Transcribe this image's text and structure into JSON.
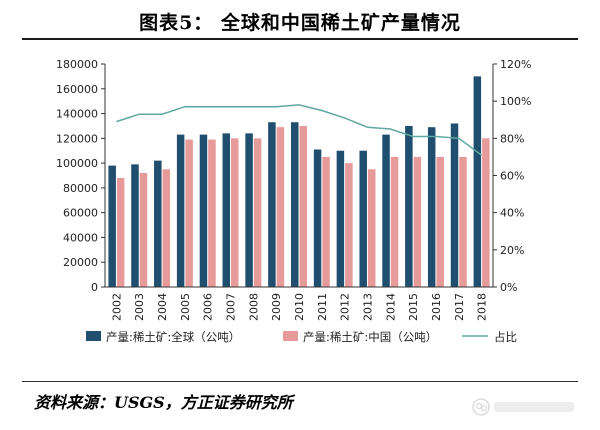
{
  "title": "图表5：  全球和中国稀土矿产量情况",
  "source": "资料来源：USGS，方正证券研究所",
  "colors": {
    "global": "#1f4e6e",
    "china": "#e79a9a",
    "ratio": "#5fa8a2",
    "axis": "#333333"
  },
  "chart_data": {
    "type": "bar",
    "categories": [
      "2002",
      "2003",
      "2004",
      "2005",
      "2006",
      "2007",
      "2008",
      "2009",
      "2010",
      "2011",
      "2012",
      "2013",
      "2014",
      "2015",
      "2016",
      "2017",
      "2018"
    ],
    "series": [
      {
        "name": "产量:稀土矿:全球（公吨）",
        "type": "bar",
        "axis": "left",
        "values": [
          98000,
          99000,
          102000,
          123000,
          123000,
          124000,
          124000,
          133000,
          133000,
          111000,
          110000,
          110000,
          123000,
          130000,
          129000,
          132000,
          170000
        ]
      },
      {
        "name": "产量:稀土矿:中国（公吨）",
        "type": "bar",
        "axis": "left",
        "values": [
          88000,
          92000,
          95000,
          119000,
          119000,
          120000,
          120000,
          129000,
          130000,
          105000,
          100000,
          95000,
          105000,
          105000,
          105000,
          105000,
          120000
        ]
      },
      {
        "name": "占比",
        "type": "line",
        "axis": "right",
        "values": [
          0.89,
          0.93,
          0.93,
          0.97,
          0.97,
          0.97,
          0.97,
          0.97,
          0.98,
          0.95,
          0.91,
          0.86,
          0.85,
          0.81,
          0.81,
          0.8,
          0.71
        ]
      }
    ],
    "ylim": [
      0,
      180000
    ],
    "y_ticks": [
      "0",
      "20000",
      "40000",
      "60000",
      "80000",
      "100000",
      "120000",
      "140000",
      "160000",
      "180000"
    ],
    "y2lim": [
      0,
      1.2
    ],
    "y2_ticks": [
      "0%",
      "20%",
      "40%",
      "60%",
      "80%",
      "100%",
      "120%"
    ],
    "grid": false,
    "legend_position": "bottom"
  }
}
